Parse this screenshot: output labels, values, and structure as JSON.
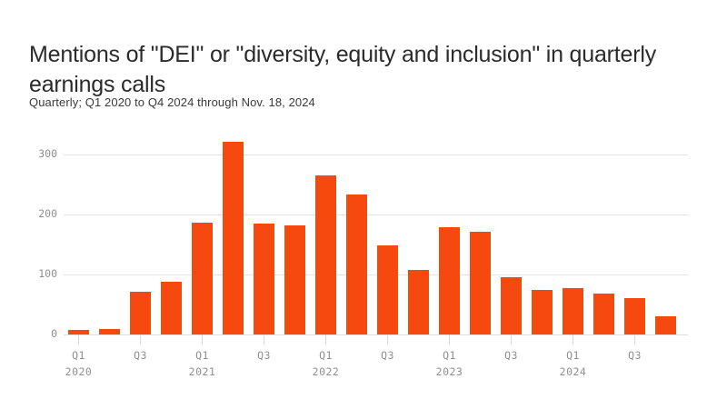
{
  "header": {
    "title": "Mentions of \"DEI\" or \"diversity, equity and inclusion\" in quarterly earnings calls",
    "subtitle": "Quarterly; Q1 2020 to Q4 2024 through Nov. 18, 2024"
  },
  "colors": {
    "bar": "#f5490f",
    "gridline": "#e3e3e3",
    "axis_text": "#8f8f8f",
    "title_text": "#2b2b2b",
    "background": "#ffffff"
  },
  "chart_data": {
    "type": "bar",
    "title": "Mentions of \"DEI\" or \"diversity, equity and inclusion\" in quarterly earnings calls",
    "title_lines": [
      "Mentions of \"DEI\" or \"diversity, equity and inclusion\" in quarterly",
      "earnings calls"
    ],
    "subtitle": "Quarterly; Q1 2020 to Q4 2024 through Nov. 18, 2024",
    "xlabel": "",
    "ylabel": "",
    "categories": [
      "Q1 2020",
      "Q2 2020",
      "Q3 2020",
      "Q4 2020",
      "Q1 2021",
      "Q2 2021",
      "Q3 2021",
      "Q4 2021",
      "Q1 2022",
      "Q2 2022",
      "Q3 2022",
      "Q4 2022",
      "Q1 2023",
      "Q2 2023",
      "Q3 2023",
      "Q4 2023",
      "Q1 2024",
      "Q2 2024",
      "Q3 2024",
      "Q4 2024"
    ],
    "values": [
      8,
      9,
      72,
      88,
      187,
      322,
      185,
      182,
      266,
      233,
      148,
      108,
      179,
      171,
      96,
      74,
      78,
      69,
      60,
      31
    ],
    "ylim": [
      0,
      349
    ],
    "y_ticks": [
      0,
      100,
      200,
      300
    ],
    "grid": "horizontal",
    "legend": "none",
    "x_ticks": [
      {
        "index": 0,
        "label": "Q1",
        "year": "2020"
      },
      {
        "index": 2,
        "label": "Q3",
        "year": ""
      },
      {
        "index": 4,
        "label": "Q1",
        "year": "2021"
      },
      {
        "index": 6,
        "label": "Q3",
        "year": ""
      },
      {
        "index": 8,
        "label": "Q1",
        "year": "2022"
      },
      {
        "index": 10,
        "label": "Q3",
        "year": ""
      },
      {
        "index": 12,
        "label": "Q1",
        "year": "2023"
      },
      {
        "index": 14,
        "label": "Q3",
        "year": ""
      },
      {
        "index": 16,
        "label": "Q1",
        "year": "2024"
      },
      {
        "index": 18,
        "label": "Q3",
        "year": ""
      }
    ]
  }
}
